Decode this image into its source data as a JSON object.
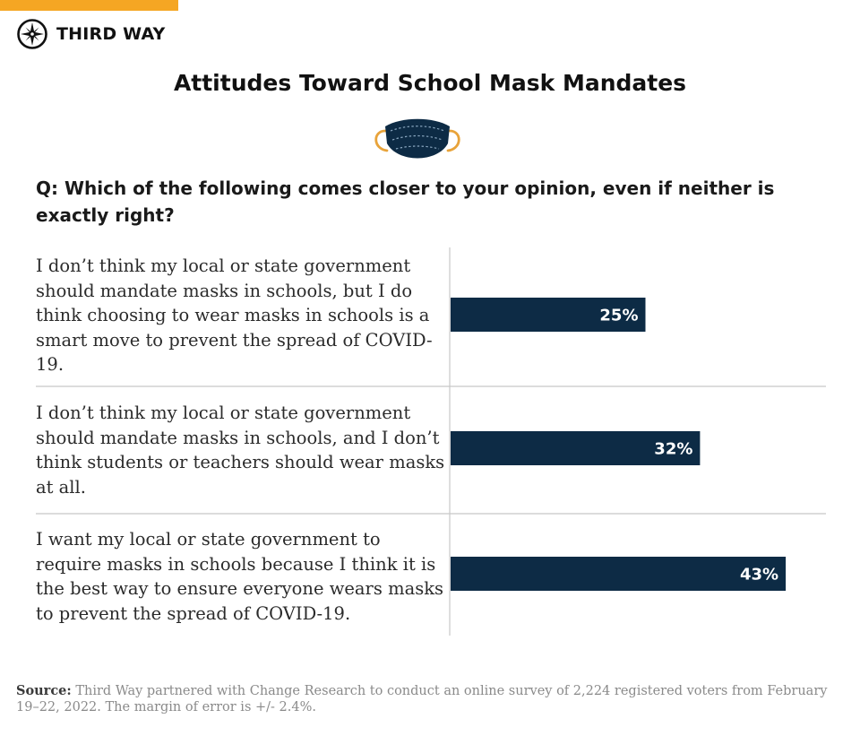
{
  "brand": {
    "name": "THIRD WAY",
    "logo_icon": "compass-star-icon",
    "accent_color": "#f5a623",
    "bar_color": "#0d2b45"
  },
  "header": {
    "title": "Attitudes Toward School Mask Mandates",
    "icon": "face-mask-icon"
  },
  "question": "Q: Which of the following comes closer to your opinion, even if neither is exactly right?",
  "chart_data": {
    "type": "bar",
    "orientation": "horizontal",
    "title": "Attitudes Toward School Mask Mandates",
    "categories": [
      "I don’t think my local or state government should mandate masks in schools, but I do think choosing to wear masks in schools is a smart move to prevent the spread of COVID-19.",
      "I don’t think my local or state government should mandate masks in schools, and I don’t think students or teachers should wear masks at all.",
      "I want my local or state government to require masks in schools because I think it is the best way to ensure everyone wears masks to prevent the spread of COVID-19."
    ],
    "values": [
      25,
      32,
      43
    ],
    "value_labels": [
      "25%",
      "32%",
      "43%"
    ],
    "unit": "%",
    "xlim": [
      0,
      48
    ],
    "xlabel": "",
    "ylabel": "",
    "grid": false,
    "legend": "none"
  },
  "footer": {
    "source_label": "Source:",
    "source_text": " Third Way partnered with Change Research to conduct an online survey of 2,224 registered voters from February 19–22, 2022. The margin of error is +/- 2.4%."
  }
}
